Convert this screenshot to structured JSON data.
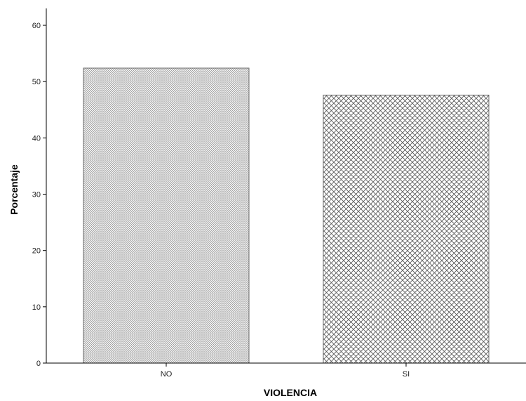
{
  "chart_data": {
    "type": "bar",
    "categories": [
      "NO",
      "SI"
    ],
    "values": [
      52.4,
      47.6
    ],
    "xlabel": "VIOLENCIA",
    "ylabel": "Porcentaje",
    "ylim": [
      0,
      63
    ],
    "yticks": [
      0,
      10,
      20,
      30,
      40,
      50,
      60
    ],
    "bar_fill_patterns": [
      "fine-crosshatch",
      "diamond-crosshatch"
    ],
    "bar_stroke_color": "#666666",
    "axis_color": "#000000",
    "grid": false,
    "legend": "none"
  }
}
